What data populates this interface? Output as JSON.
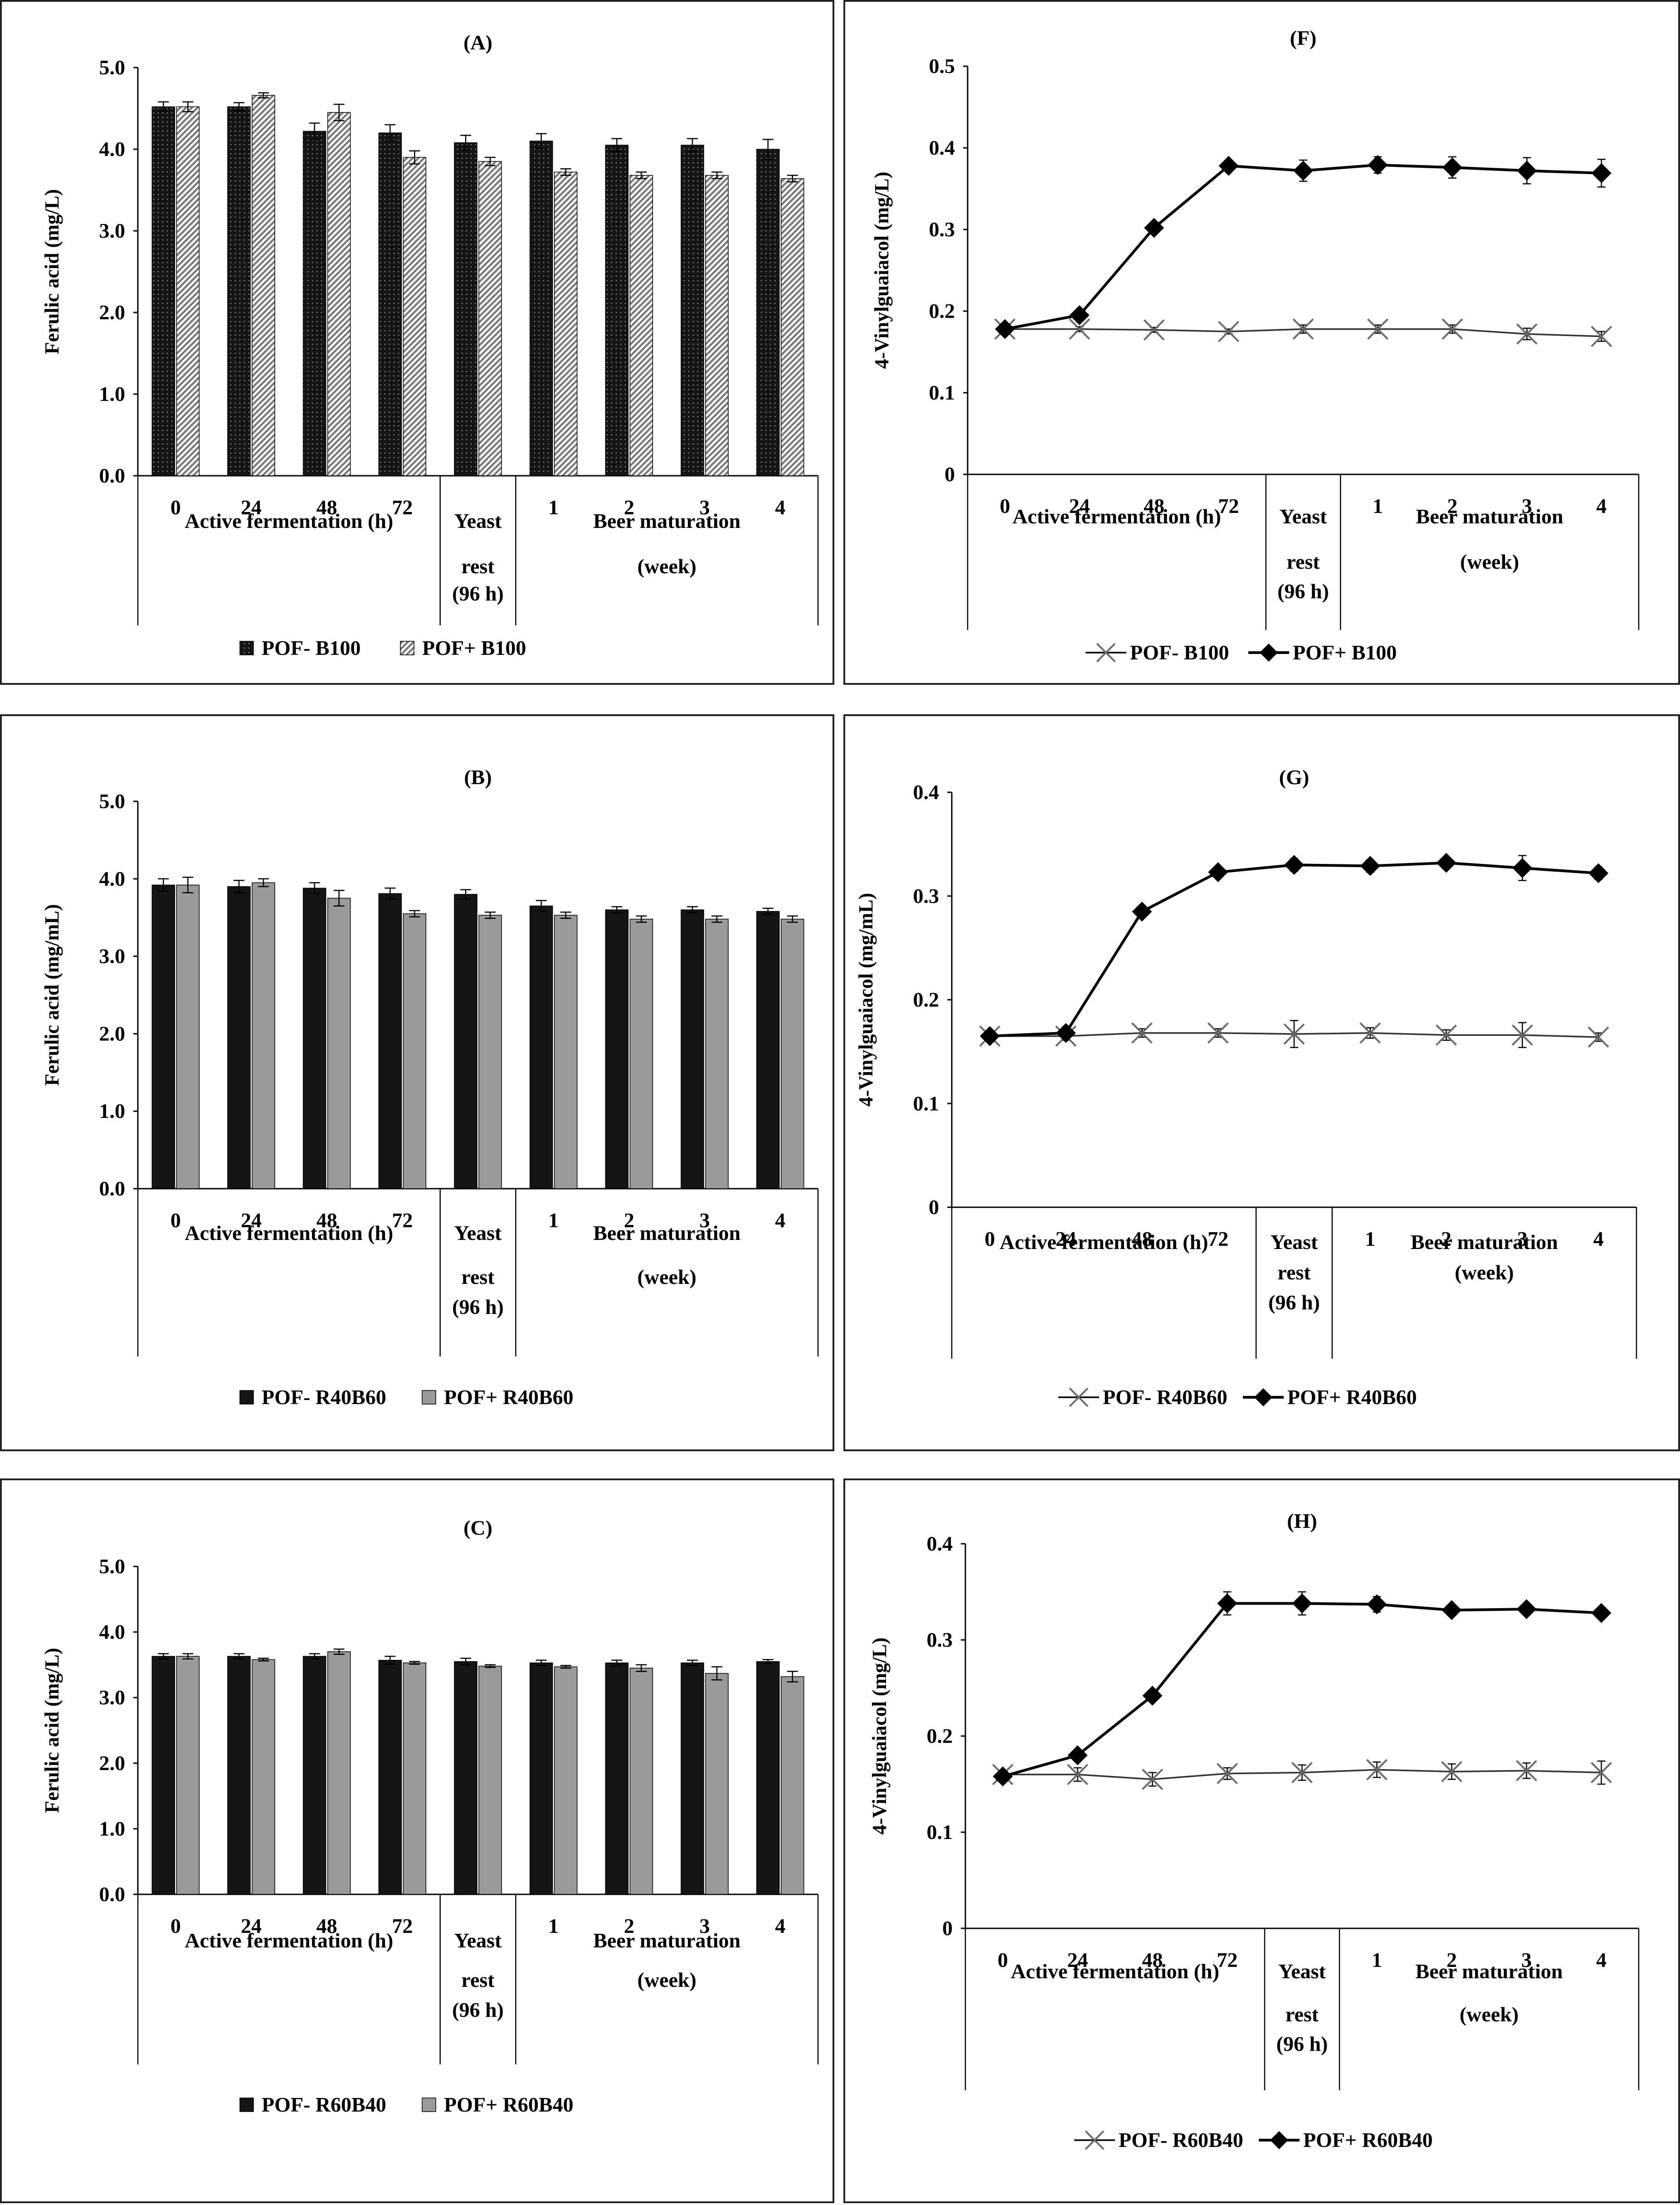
{
  "colors": {
    "pof_minus_bar": "#151515",
    "pof_plus_bar": "#9a9a9a",
    "line": "#000000",
    "cross": "#6a6a6a",
    "panel_border": "#222222"
  },
  "x_categories": [
    "0",
    "24",
    "48",
    "72",
    "",
    "1",
    "2",
    "3",
    "4"
  ],
  "groups": {
    "active": "Active fermentation (h)",
    "yeast_lines": [
      "Yeast",
      "rest",
      "(96 h)"
    ],
    "beer_lines": [
      "Beer maturation",
      "(week)"
    ]
  },
  "chart_data": [
    {
      "id": "A",
      "type": "bar",
      "title": "(A)",
      "ylabel": "Ferulic acid (mg/L)",
      "ylim": [
        0,
        5
      ],
      "yticks": [
        "0.0",
        "1.0",
        "2.0",
        "3.0",
        "4.0",
        "5.0"
      ],
      "categories": [
        "0",
        "24",
        "48",
        "72",
        "96 h",
        "1",
        "2",
        "3",
        "4"
      ],
      "series": [
        {
          "name": "POF- B100",
          "values": [
            4.52,
            4.52,
            4.22,
            4.2,
            4.08,
            4.1,
            4.05,
            4.05,
            4.0
          ],
          "errors": [
            0.06,
            0.05,
            0.1,
            0.1,
            0.09,
            0.09,
            0.08,
            0.08,
            0.12
          ]
        },
        {
          "name": "POF+ B100",
          "values": [
            4.52,
            4.66,
            4.45,
            3.9,
            3.85,
            3.72,
            3.68,
            3.68,
            3.64
          ],
          "errors": [
            0.06,
            0.03,
            0.1,
            0.08,
            0.05,
            0.04,
            0.04,
            0.04,
            0.04
          ]
        }
      ],
      "legend": [
        "POF- B100",
        "POF+ B100"
      ]
    },
    {
      "id": "B",
      "type": "bar",
      "title": "(B)",
      "ylabel": "Ferulic acid (mg/mL)",
      "ylim": [
        0,
        5
      ],
      "yticks": [
        "0.0",
        "1.0",
        "2.0",
        "3.0",
        "4.0",
        "5.0"
      ],
      "categories": [
        "0",
        "24",
        "48",
        "72",
        "96 h",
        "1",
        "2",
        "3",
        "4"
      ],
      "series": [
        {
          "name": "POF- R40B60",
          "values": [
            3.92,
            3.9,
            3.88,
            3.81,
            3.8,
            3.65,
            3.6,
            3.6,
            3.58
          ],
          "errors": [
            0.08,
            0.08,
            0.07,
            0.07,
            0.06,
            0.07,
            0.04,
            0.04,
            0.04
          ]
        },
        {
          "name": "POF+ R40B60",
          "values": [
            3.92,
            3.95,
            3.75,
            3.55,
            3.53,
            3.53,
            3.48,
            3.48,
            3.48
          ],
          "errors": [
            0.1,
            0.05,
            0.1,
            0.04,
            0.04,
            0.04,
            0.04,
            0.04,
            0.04
          ]
        }
      ],
      "legend": [
        "POF- R40B60",
        "POF+ R40B60"
      ]
    },
    {
      "id": "C",
      "type": "bar",
      "title": "(C)",
      "ylabel": "Ferulic acid (mg/L)",
      "ylim": [
        0,
        5
      ],
      "yticks": [
        "0.0",
        "1.0",
        "2.0",
        "3.0",
        "4.0",
        "5.0"
      ],
      "categories": [
        "0",
        "24",
        "48",
        "72",
        "96 h",
        "1",
        "2",
        "3",
        "4"
      ],
      "series": [
        {
          "name": "POF- R60B40",
          "values": [
            3.63,
            3.63,
            3.63,
            3.57,
            3.55,
            3.53,
            3.53,
            3.53,
            3.55
          ],
          "errors": [
            0.04,
            0.04,
            0.04,
            0.06,
            0.05,
            0.04,
            0.04,
            0.04,
            0.03
          ]
        },
        {
          "name": "POF+ R60B40",
          "values": [
            3.63,
            3.58,
            3.7,
            3.53,
            3.48,
            3.47,
            3.45,
            3.37,
            3.32
          ],
          "errors": [
            0.04,
            0.02,
            0.04,
            0.02,
            0.02,
            0.02,
            0.05,
            0.1,
            0.08
          ]
        }
      ],
      "legend": [
        "POF- R60B40",
        "POF+ R60B40"
      ]
    },
    {
      "id": "F",
      "type": "line",
      "title": "(F)",
      "ylabel": "4-Vinylguaiacol (mg/L)",
      "ylim": [
        0,
        0.5
      ],
      "yticks": [
        "0",
        "0.1",
        "0.2",
        "0.3",
        "0.4",
        "0.5"
      ],
      "categories": [
        "0",
        "24",
        "48",
        "72",
        "96 h",
        "1",
        "2",
        "3",
        "4"
      ],
      "series": [
        {
          "name": "POF- B100",
          "marker": "cross",
          "values": [
            0.178,
            0.178,
            0.177,
            0.175,
            0.178,
            0.178,
            0.178,
            0.172,
            0.169
          ],
          "errors": [
            0.003,
            0.003,
            0.003,
            0.003,
            0.005,
            0.005,
            0.005,
            0.007,
            0.006
          ]
        },
        {
          "name": "POF+ B100",
          "marker": "diamond",
          "values": [
            0.178,
            0.195,
            0.302,
            0.378,
            0.372,
            0.379,
            0.376,
            0.372,
            0.369
          ],
          "errors": [
            0.003,
            0.004,
            0.004,
            0.006,
            0.013,
            0.01,
            0.013,
            0.016,
            0.017
          ]
        }
      ],
      "legend": [
        "POF- B100",
        "POF+ B100"
      ]
    },
    {
      "id": "G",
      "type": "line",
      "title": "(G)",
      "ylabel": "4-Vinylguaiacol (mg/mL)",
      "ylim": [
        0,
        0.4
      ],
      "yticks": [
        "0",
        "0.1",
        "0.2",
        "0.3",
        "0.4"
      ],
      "categories": [
        "0",
        "24",
        "48",
        "72",
        "96 h",
        "1",
        "2",
        "3",
        "4"
      ],
      "series": [
        {
          "name": "POF- R40B60",
          "marker": "cross",
          "values": [
            0.165,
            0.165,
            0.168,
            0.168,
            0.167,
            0.168,
            0.166,
            0.166,
            0.164
          ],
          "errors": [
            0.004,
            0.004,
            0.004,
            0.004,
            0.013,
            0.005,
            0.005,
            0.012,
            0.004
          ]
        },
        {
          "name": "POF+ R40B60",
          "marker": "diamond",
          "values": [
            0.165,
            0.168,
            0.285,
            0.323,
            0.33,
            0.329,
            0.332,
            0.327,
            0.322
          ],
          "errors": [
            0.003,
            0.003,
            0.005,
            0.005,
            0.006,
            0.006,
            0.005,
            0.012,
            0.006
          ]
        }
      ],
      "legend": [
        "POF- R40B60",
        "POF+ R40B60"
      ]
    },
    {
      "id": "H",
      "type": "line",
      "title": "(H)",
      "ylabel": "4-Vinylguaiacol (mg/L)",
      "ylim": [
        0,
        0.4
      ],
      "yticks": [
        "0",
        "0.1",
        "0.2",
        "0.3",
        "0.4"
      ],
      "categories": [
        "0",
        "24",
        "48",
        "72",
        "96 h",
        "1",
        "2",
        "3",
        "4"
      ],
      "series": [
        {
          "name": "POF- R60B40",
          "marker": "cross",
          "values": [
            0.16,
            0.16,
            0.155,
            0.161,
            0.162,
            0.165,
            0.163,
            0.164,
            0.162
          ],
          "errors": [
            0.003,
            0.007,
            0.007,
            0.006,
            0.008,
            0.008,
            0.008,
            0.008,
            0.012
          ]
        },
        {
          "name": "POF+ R60B40",
          "marker": "diamond",
          "values": [
            0.158,
            0.18,
            0.242,
            0.338,
            0.338,
            0.337,
            0.331,
            0.332,
            0.328
          ],
          "errors": [
            0.003,
            0.004,
            0.005,
            0.012,
            0.012,
            0.008,
            0.004,
            0.004,
            0.004
          ]
        }
      ],
      "legend": [
        "POF- R60B40",
        "POF+ R60B40"
      ]
    }
  ]
}
